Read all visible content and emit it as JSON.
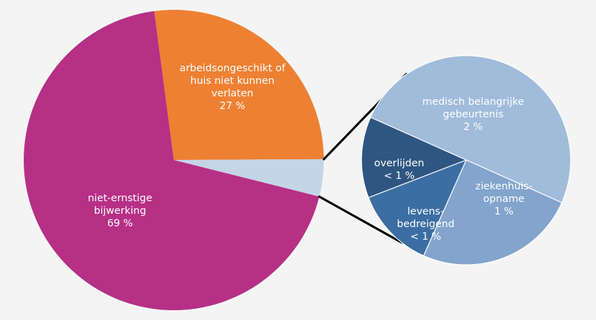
{
  "chart_data": [
    {
      "type": "pie",
      "slices": [
        {
          "label_lines": [
            "arbeidsongeschikt of",
            "huis niet kunnen",
            "verlaten"
          ],
          "value_label": "27 %",
          "value": 27,
          "color": "#ee8033"
        },
        {
          "label_lines": [],
          "value_label": "",
          "value": 4,
          "color": "#c4d5e7"
        },
        {
          "label_lines": [
            "niet-ernstige",
            "bijwerking"
          ],
          "value_label": "69 %",
          "value": 69,
          "color": "#b63086"
        }
      ]
    },
    {
      "type": "pie",
      "slices": [
        {
          "label_lines": [
            "medisch belangrijke",
            "gebeurtenis"
          ],
          "value_label": "2 %",
          "value": 2,
          "color": "#a1bbdb"
        },
        {
          "label_lines": [
            "ziekenhuis-",
            "opname"
          ],
          "value_label": "1 %",
          "value": 1,
          "color": "#82a4cd"
        },
        {
          "label_lines": [
            "levens-",
            "bedreigend"
          ],
          "value_label": "< 1 %",
          "value": 0.5,
          "color": "#3c6ea3"
        },
        {
          "label_lines": [
            "overlijden"
          ],
          "value_label": "< 1 %",
          "value": 0.5,
          "color": "#2f5681"
        }
      ]
    }
  ]
}
